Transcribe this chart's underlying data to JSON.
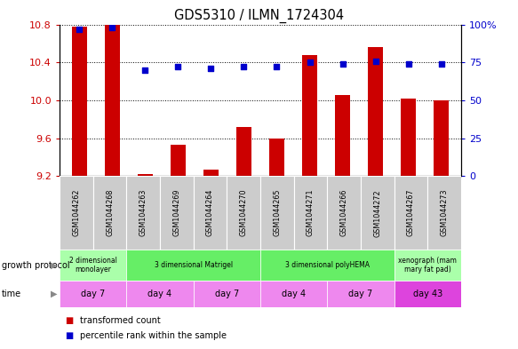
{
  "title": "GDS5310 / ILMN_1724304",
  "samples": [
    "GSM1044262",
    "GSM1044268",
    "GSM1044263",
    "GSM1044269",
    "GSM1044264",
    "GSM1044270",
    "GSM1044265",
    "GSM1044271",
    "GSM1044266",
    "GSM1044272",
    "GSM1044267",
    "GSM1044273"
  ],
  "bar_values": [
    10.78,
    10.82,
    9.22,
    9.53,
    9.27,
    9.72,
    9.6,
    10.48,
    10.06,
    10.56,
    10.02,
    10.0
  ],
  "dot_values": [
    97,
    98,
    70,
    72,
    71,
    72,
    72,
    75,
    74,
    76,
    74,
    74
  ],
  "ylim_left": [
    9.2,
    10.8
  ],
  "ylim_right": [
    0,
    100
  ],
  "left_ticks": [
    9.2,
    9.6,
    10.0,
    10.4,
    10.8
  ],
  "right_ticks": [
    0,
    25,
    50,
    75,
    100
  ],
  "bar_color": "#cc0000",
  "dot_color": "#0000cc",
  "growth_protocol_groups": [
    {
      "label": "2 dimensional\nmonolayer",
      "start": 0,
      "end": 2,
      "color": "#aaffaa"
    },
    {
      "label": "3 dimensional Matrigel",
      "start": 2,
      "end": 6,
      "color": "#66ee66"
    },
    {
      "label": "3 dimensional polyHEMA",
      "start": 6,
      "end": 10,
      "color": "#66ee66"
    },
    {
      "label": "xenograph (mam\nmary fat pad)",
      "start": 10,
      "end": 12,
      "color": "#aaffaa"
    }
  ],
  "time_groups": [
    {
      "label": "day 7",
      "start": 0,
      "end": 2,
      "color": "#ee88ee"
    },
    {
      "label": "day 4",
      "start": 2,
      "end": 4,
      "color": "#ee88ee"
    },
    {
      "label": "day 7",
      "start": 4,
      "end": 6,
      "color": "#ee88ee"
    },
    {
      "label": "day 4",
      "start": 6,
      "end": 8,
      "color": "#ee88ee"
    },
    {
      "label": "day 7",
      "start": 8,
      "end": 10,
      "color": "#ee88ee"
    },
    {
      "label": "day 43",
      "start": 10,
      "end": 12,
      "color": "#dd44dd"
    }
  ],
  "legend_items": [
    {
      "label": "transformed count",
      "color": "#cc0000"
    },
    {
      "label": "percentile rank within the sample",
      "color": "#0000cc"
    }
  ],
  "left_label_color": "#cc0000",
  "right_label_color": "#0000cc",
  "background_color": "#ffffff",
  "growth_protocol_label": "growth protocol",
  "time_label": "time",
  "sample_box_color": "#cccccc",
  "bar_width": 0.45
}
